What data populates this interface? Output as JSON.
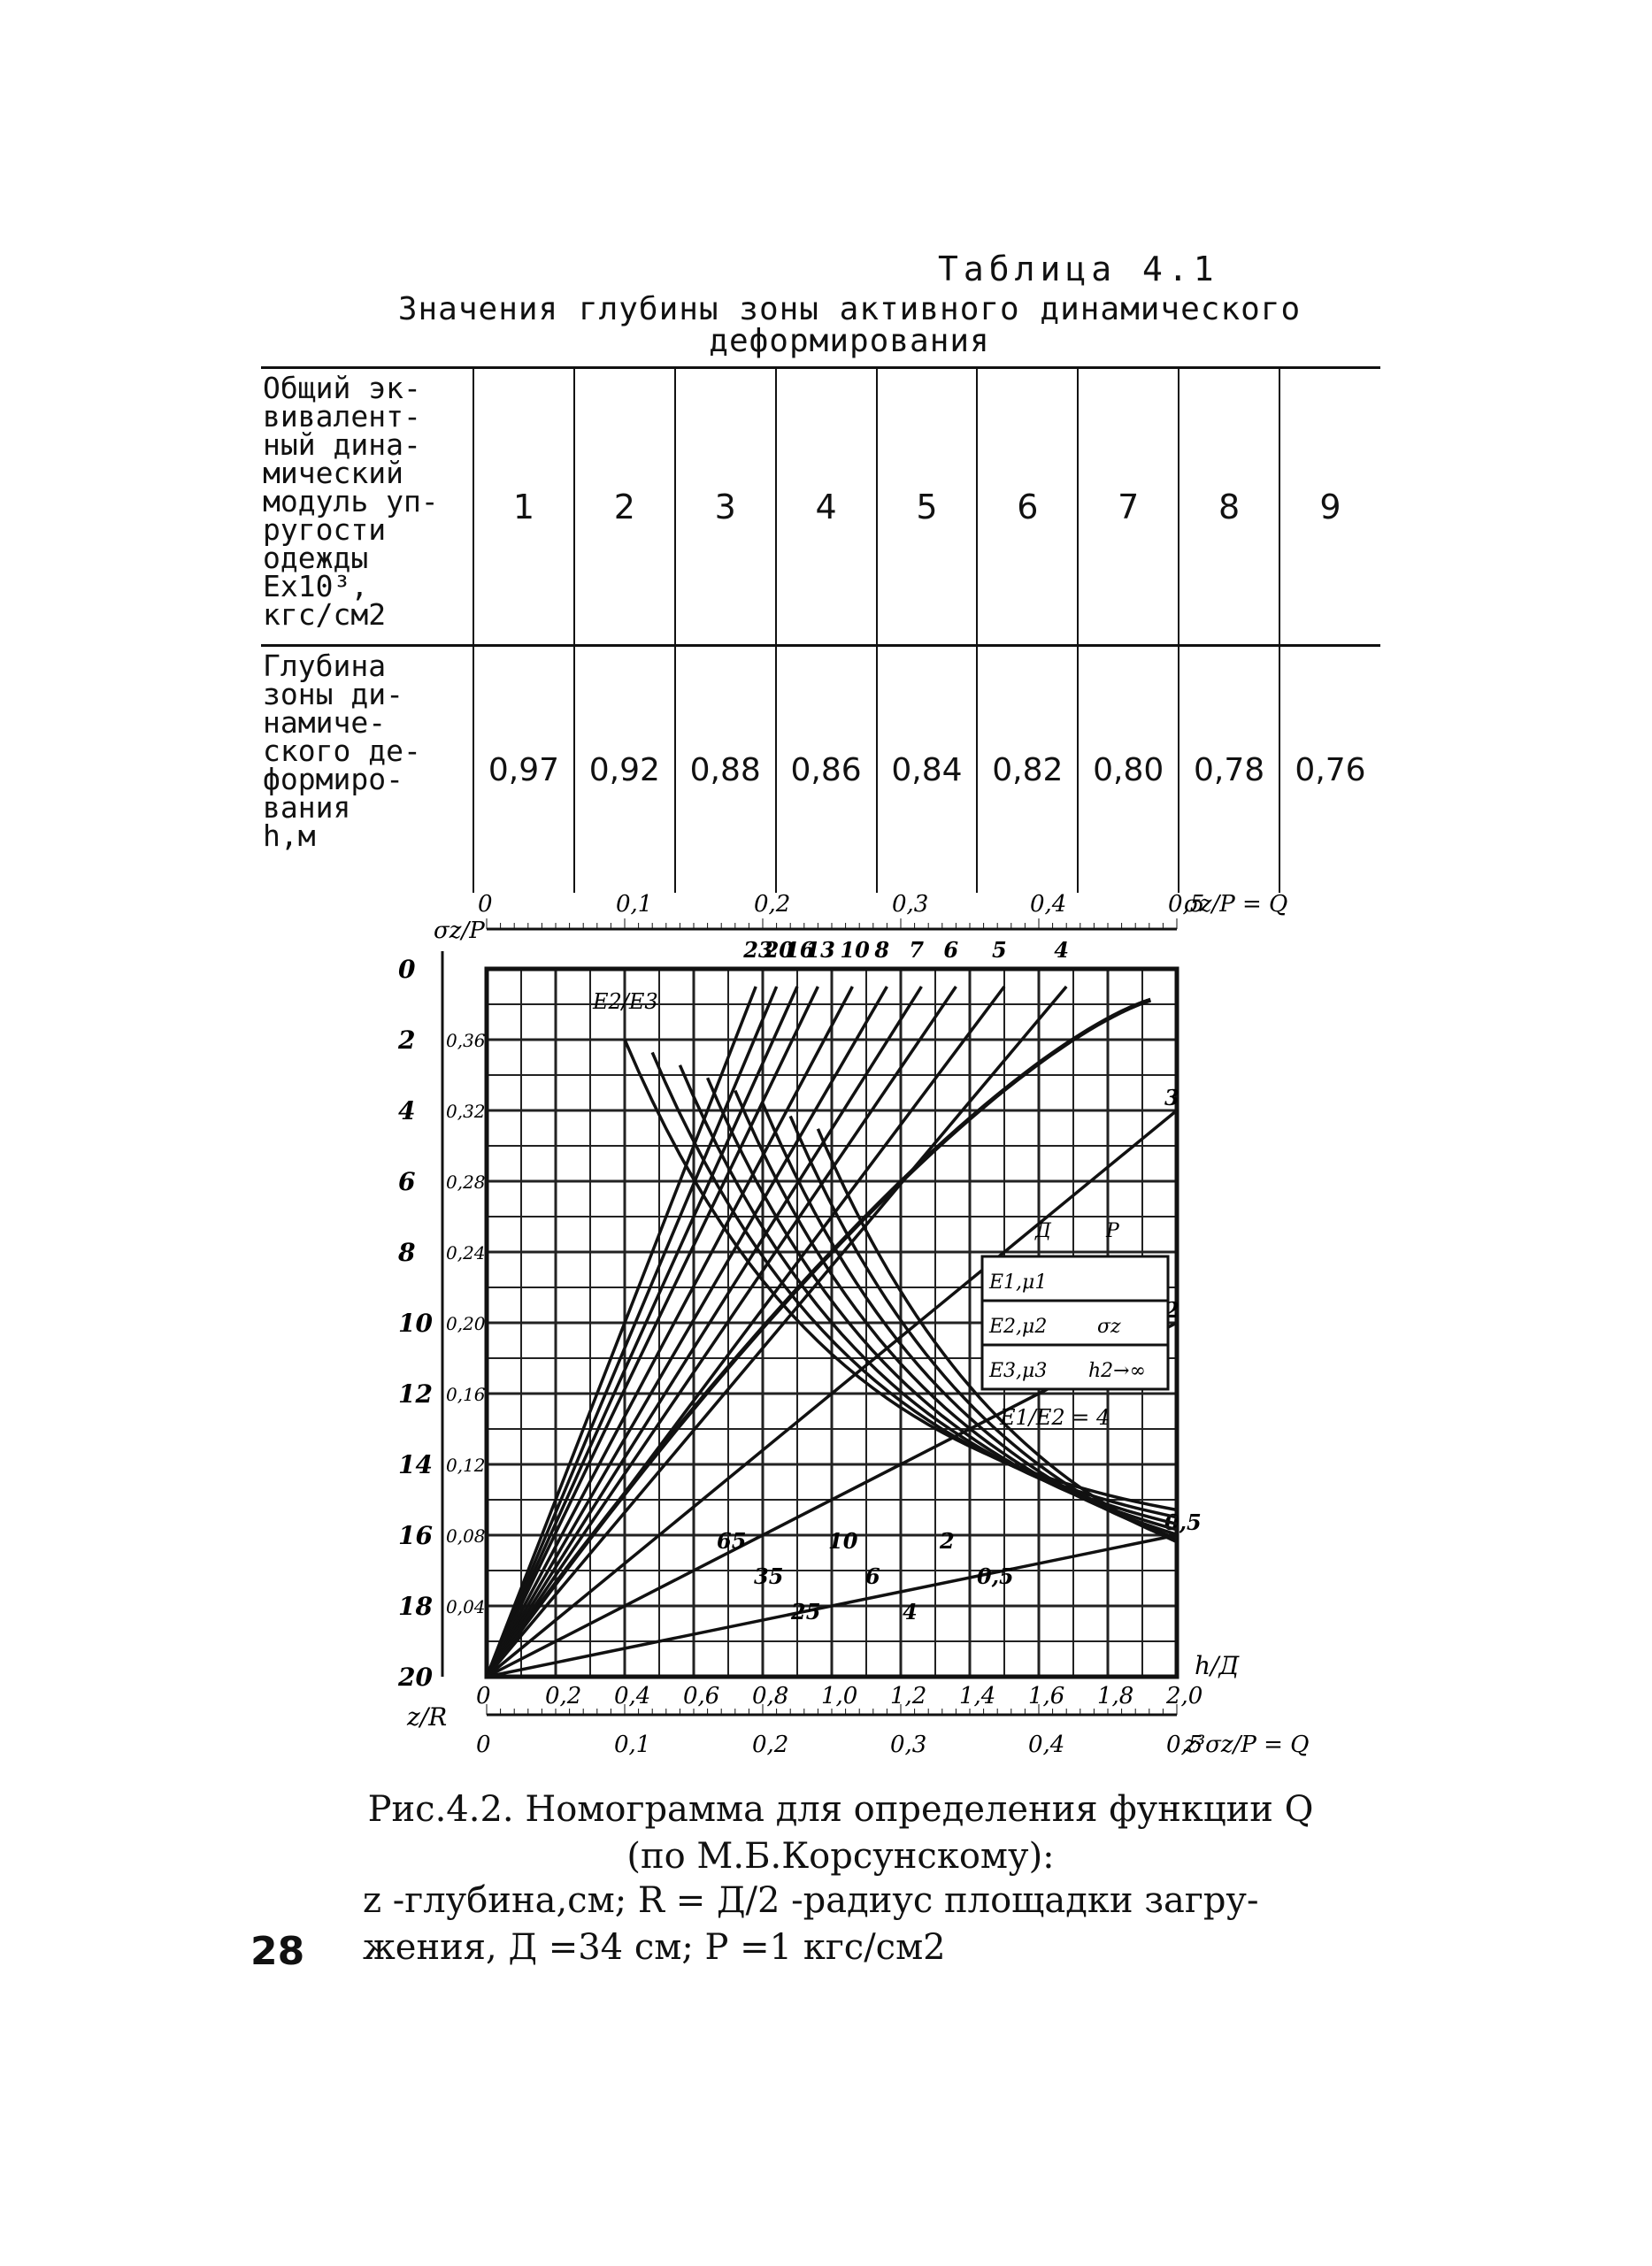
{
  "table": {
    "label": "Таблица 4.1",
    "title": "Значения глубины зоны активного динамического деформирования",
    "row1_header": "Общий эк-\nвивалент-\nный дина-\nмический\nмодуль уп-\nругости\nодежды\nEx10³,\nкгс/см2",
    "row2_header": "Глубина\nзоны ди-\nнамиче-\nского де-\nформиро-\nвания\nh,м",
    "modulus_values": [
      "1",
      "2",
      "3",
      "4",
      "5",
      "6",
      "7",
      "8",
      "9"
    ],
    "depth_values": [
      "0,97",
      "0,92",
      "0,88",
      "0,86",
      "0,84",
      "0,82",
      "0,80",
      "0,78",
      "0,76"
    ]
  },
  "figure": {
    "caption_line1": "Рис.4.2. Номограмма для определения функции Q",
    "caption_line2": "(по М.Б.Корсунскому):",
    "legend_line1": "z -глубина,см;  R = Д/2  -радиус площадки загру-",
    "legend_line2": "жения, Д =34 см;   P =1 кгс/см2"
  },
  "page_number": "28",
  "chart_data": {
    "type": "line",
    "top_axis": {
      "label": "σz/P = Q",
      "ticks": [
        "0",
        "0,1",
        "0,2",
        "0,3",
        "0,4",
        "0,5"
      ]
    },
    "bottom_axis_q": {
      "label": "z³σz/P = Q",
      "ticks": [
        "0",
        "0,1",
        "0,2",
        "0,3",
        "0,4",
        "0,5"
      ]
    },
    "bottom_axis_h": {
      "label": "h/Д",
      "ticks": [
        "0",
        "0,2",
        "0,4",
        "0,6",
        "0,8",
        "1,0",
        "1,2",
        "1,4",
        "1,6",
        "1,8",
        "2,0"
      ]
    },
    "left_axis_z": {
      "label": "z/R",
      "ticks": [
        "0",
        "2",
        "4",
        "6",
        "8",
        "10",
        "12",
        "14",
        "16",
        "18",
        "20"
      ]
    },
    "left_axis_sigma": {
      "label": "σz/P",
      "ticks": [
        "0,36",
        "0,32",
        "0,28",
        "0,24",
        "0,20",
        "0,16",
        "0,12",
        "0,08",
        "0,04"
      ]
    },
    "ratio_e2_e3": [
      "23",
      "20",
      "16",
      "13",
      "10",
      "8",
      "7",
      "6",
      "5",
      "4",
      "3",
      "2",
      "0,5"
    ],
    "ratio_e1_e2": [
      "65",
      "35",
      "25",
      "10",
      "6",
      "4",
      "2",
      "0,5"
    ],
    "label_e2_e3": "E2/E3",
    "label_e1_e2": "E1/E2 = 4",
    "schema_labels": [
      "Д",
      "P",
      "E1,μ1",
      "E2,μ2",
      "E3,μ3",
      "h2→∞",
      "σz"
    ]
  }
}
